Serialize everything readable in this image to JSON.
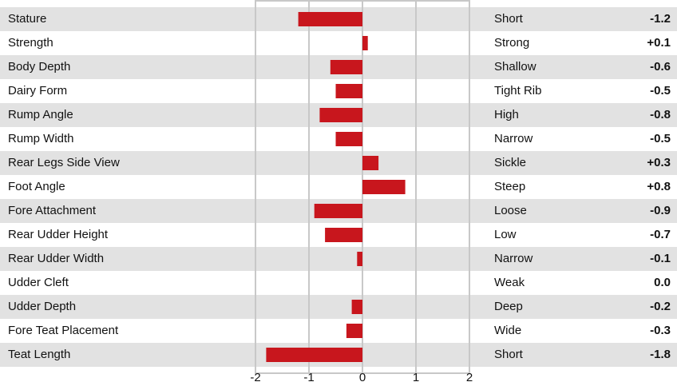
{
  "chart_data": {
    "type": "bar",
    "orientation": "horizontal",
    "categories": [
      "Stature",
      "Strength",
      "Body Depth",
      "Dairy Form",
      "Rump Angle",
      "Rump Width",
      "Rear Legs Side View",
      "Foot Angle",
      "Fore Attachment",
      "Rear Udder Height",
      "Rear Udder Width",
      "Udder Cleft",
      "Udder Depth",
      "Fore Teat Placement",
      "Teat Length"
    ],
    "values": [
      -1.2,
      0.1,
      -0.6,
      -0.5,
      -0.8,
      -0.5,
      0.3,
      0.8,
      -0.9,
      -0.7,
      -0.1,
      0.0,
      -0.2,
      -0.3,
      -1.8
    ],
    "value_labels": [
      "-1.2",
      "+0.1",
      "-0.6",
      "-0.5",
      "-0.8",
      "-0.5",
      "+0.3",
      "+0.8",
      "-0.9",
      "-0.7",
      "-0.1",
      "0.0",
      "-0.2",
      "-0.3",
      "-1.8"
    ],
    "descriptors": [
      "Short",
      "Strong",
      "Shallow",
      "Tight Rib",
      "High",
      "Narrow",
      "Sickle",
      "Steep",
      "Loose",
      "Low",
      "Narrow",
      "Weak",
      "Deep",
      "Wide",
      "Short"
    ],
    "xlim": [
      -2,
      2
    ],
    "xticks": [
      "-2",
      "-1",
      "0",
      "1",
      "2"
    ],
    "grid": true,
    "bar_color": "#c8161d",
    "row_shade_color": "#e2e2e2"
  }
}
